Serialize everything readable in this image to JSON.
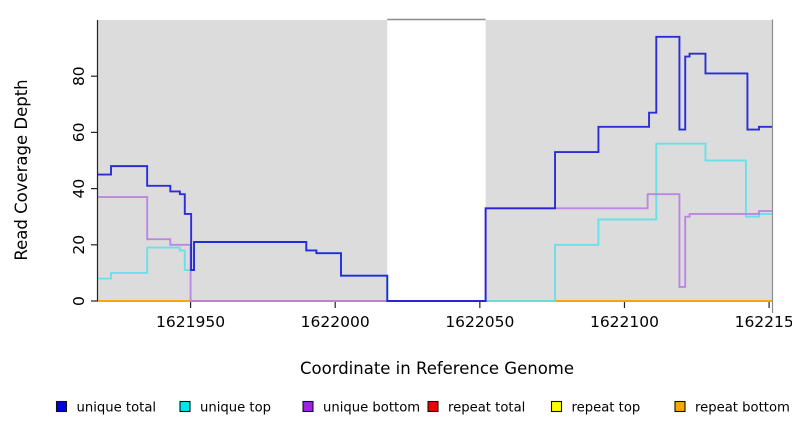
{
  "chart_data": {
    "type": "line",
    "subtype": "step",
    "title": "",
    "xlabel": "Coordinate in Reference Genome",
    "ylabel": "Read Coverage Depth",
    "xlim": [
      1621918,
      1622151
    ],
    "ylim": [
      0,
      100
    ],
    "x_ticks": [
      1621950,
      1622000,
      1622050,
      1622100,
      1622150
    ],
    "y_ticks": [
      0,
      20,
      40,
      60,
      80
    ],
    "grid": false,
    "shade_color": "#dcdcdc",
    "shaded_regions": [
      [
        1621918,
        1622018
      ],
      [
        1622052,
        1622151
      ]
    ],
    "gap_region": [
      1622018,
      1622052
    ],
    "frame_color": "#8c8c8c",
    "series": [
      {
        "name": "repeat total",
        "color": "#ee0000",
        "line_color": "#dd2222",
        "steps": [
          [
            1621918,
            0
          ]
        ]
      },
      {
        "name": "repeat top",
        "color": "#ffff00",
        "line_color": "#f2e800",
        "steps": [
          [
            1621918,
            0
          ]
        ]
      },
      {
        "name": "repeat bottom",
        "color": "#ffa500",
        "line_color": "#ff9e00",
        "steps": [
          [
            1621918,
            0
          ]
        ]
      },
      {
        "name": "unique top",
        "color": "#00e5ee",
        "line_color": "#5fe0e8",
        "steps": [
          [
            1621918,
            8
          ],
          [
            1621922.5,
            10
          ],
          [
            1621935,
            19
          ],
          [
            1621946.3,
            18
          ],
          [
            1621948,
            11
          ],
          [
            1621951.2,
            21
          ],
          [
            1621990,
            18
          ],
          [
            1621993.5,
            17
          ],
          [
            1622002,
            9
          ],
          [
            1622018,
            0
          ],
          [
            1622076,
            20
          ],
          [
            1622091,
            29
          ],
          [
            1622111,
            56
          ],
          [
            1622128,
            50
          ],
          [
            1622142,
            30
          ],
          [
            1622146.5,
            31
          ]
        ]
      },
      {
        "name": "unique bottom",
        "color": "#a020f0",
        "line_color": "#b77fe0",
        "steps": [
          [
            1621918,
            37
          ],
          [
            1621935,
            22
          ],
          [
            1621943,
            20
          ],
          [
            1621950,
            0
          ],
          [
            1622052,
            33
          ],
          [
            1622108,
            38
          ],
          [
            1622119,
            5
          ],
          [
            1622121,
            30
          ],
          [
            1622122.5,
            31
          ],
          [
            1622146.5,
            32
          ]
        ]
      },
      {
        "name": "unique total",
        "color": "#0000e6",
        "line_color": "#1c1cd8",
        "steps": [
          [
            1621918,
            45
          ],
          [
            1621922.5,
            48
          ],
          [
            1621935,
            41
          ],
          [
            1621943,
            39
          ],
          [
            1621946.3,
            38
          ],
          [
            1621948,
            31
          ],
          [
            1621950.2,
            11
          ],
          [
            1621951.2,
            21
          ],
          [
            1621990,
            18
          ],
          [
            1621993.5,
            17
          ],
          [
            1622002,
            9
          ],
          [
            1622018,
            0
          ],
          [
            1622052,
            33
          ],
          [
            1622076,
            53
          ],
          [
            1622091,
            62
          ],
          [
            1622108.5,
            67
          ],
          [
            1622111,
            94
          ],
          [
            1622119,
            61
          ],
          [
            1622121,
            87
          ],
          [
            1622122.5,
            88
          ],
          [
            1622128,
            81
          ],
          [
            1622142.5,
            61
          ],
          [
            1622146.5,
            62
          ]
        ]
      }
    ]
  },
  "legend": {
    "items": [
      {
        "label": "unique total",
        "color": "#0000e6"
      },
      {
        "label": "unique top",
        "color": "#00e5ee"
      },
      {
        "label": "unique bottom",
        "color": "#a020f0"
      },
      {
        "label": "repeat total",
        "color": "#ee0000"
      },
      {
        "label": "repeat top",
        "color": "#ffff00"
      },
      {
        "label": "repeat bottom",
        "color": "#ffa500"
      }
    ]
  }
}
